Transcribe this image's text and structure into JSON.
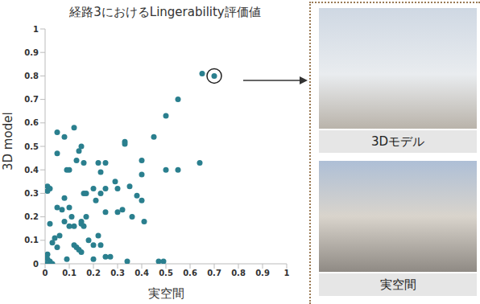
{
  "chart_data": {
    "type": "scatter",
    "title": "経路3におけるLingerability評価値",
    "x_label": "実空間",
    "y_label": "3D model",
    "color": "#2a7f8e",
    "marker": "circle",
    "grid": false,
    "xlim": [
      0,
      1
    ],
    "ylim": [
      0,
      1
    ],
    "xticks": [
      0,
      0.1,
      0.2,
      0.3,
      0.4,
      0.5,
      0.6,
      0.7,
      0.8,
      0.9,
      1
    ],
    "yticks": [
      0,
      0.1,
      0.2,
      0.3,
      0.4,
      0.5,
      0.6,
      0.7,
      0.8,
      0.9,
      1
    ],
    "annotations": [
      "3Dモデル",
      "実空間"
    ],
    "x": [
      0.65,
      0.7,
      0.55,
      0.5,
      0.45,
      0.64,
      0.55,
      0.5,
      0.4,
      0.4,
      0.38,
      0.4,
      0.35,
      0.33,
      0.33,
      0.29,
      0.3,
      0.32,
      0.3,
      0.22,
      0.25,
      0.23,
      0.25,
      0.23,
      0.2,
      0.21,
      0.12,
      0.15,
      0.14,
      0.13,
      0.1,
      0.09,
      0.16,
      0.05,
      0.08,
      0.05,
      0.01,
      0.02,
      0.01,
      0.02,
      0.05,
      0.07,
      0.08,
      0.08,
      0.1,
      0.11,
      0.12,
      0.1,
      0.15,
      0.16,
      0.17,
      0.17,
      0.16,
      0.15,
      0.18,
      0.2,
      0.22,
      0.25,
      0.23,
      0.25,
      0.27,
      0.2,
      0.12,
      0.13,
      0.15,
      0.14,
      0.04,
      0.06,
      0.05,
      0.09,
      0.03,
      0.01,
      0,
      0.01,
      0.02,
      0,
      0.02,
      0.03,
      0.34,
      0.47,
      0.49,
      0.41,
      0.36
    ],
    "values": [
      0.81,
      0.8,
      0.7,
      0.63,
      0.54,
      0.43,
      0.4,
      0.4,
      0.44,
      0.38,
      0.29,
      0.27,
      0.33,
      0.52,
      0.51,
      0.35,
      0.22,
      0.23,
      0.32,
      0.43,
      0.43,
      0.39,
      0.32,
      0.3,
      0.32,
      0.27,
      0.58,
      0.5,
      0.48,
      0.44,
      0.4,
      0.4,
      0.43,
      0.56,
      0.54,
      0.47,
      0.33,
      0.32,
      0.31,
      0.17,
      0.24,
      0.23,
      0.28,
      0.18,
      0.24,
      0.2,
      0.16,
      0.16,
      0.18,
      0.3,
      0.3,
      0.2,
      0.16,
      0.17,
      0.1,
      0.08,
      0.12,
      0.22,
      0.08,
      0.03,
      0.03,
      0.02,
      0.08,
      0.07,
      0.05,
      0.06,
      0.11,
      0.12,
      0.07,
      0.02,
      0.09,
      0.04,
      0.03,
      0.02,
      0.01,
      0,
      0,
      0,
      0.01,
      0.01,
      0.01,
      0.18,
      0.2
    ]
  }
}
